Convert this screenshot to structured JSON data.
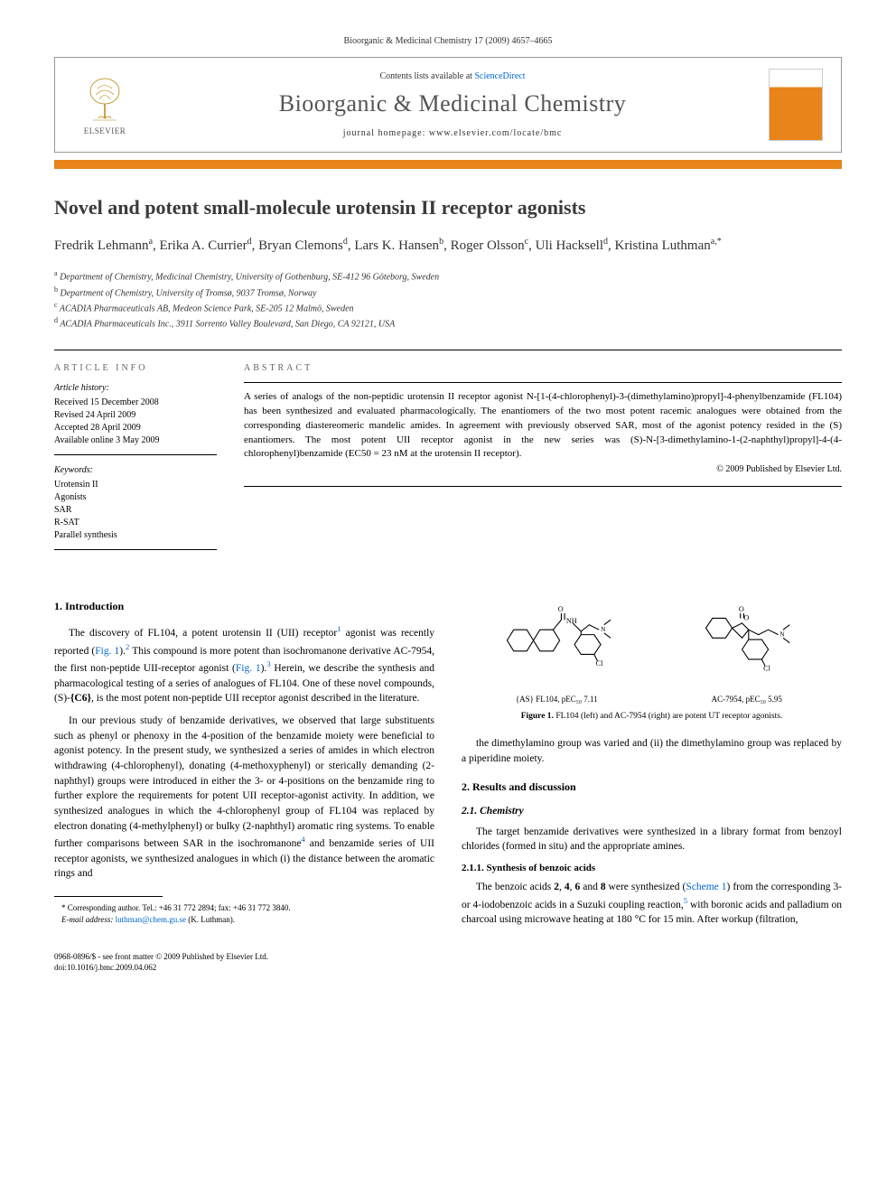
{
  "journal_ref": "Bioorganic & Medicinal Chemistry 17 (2009) 4657–4665",
  "header": {
    "contents_prefix": "Contents lists available at ",
    "contents_link": "ScienceDirect",
    "journal_title": "Bioorganic & Medicinal Chemistry",
    "homepage_prefix": "journal homepage: ",
    "homepage_url": "www.elsevier.com/locate/bmc",
    "publisher": "ELSEVIER"
  },
  "title": "Novel and potent small-molecule urotensin II receptor agonists",
  "authors_html": "Fredrik Lehmann<sup>a</sup>, Erika A. Currier<sup>d</sup>, Bryan Clemons<sup>d</sup>, Lars K. Hansen<sup>b</sup>, Roger Olsson<sup>c</sup>, Uli Hacksell<sup>d</sup>, Kristina Luthman<sup>a,*</sup>",
  "affiliations": [
    "Department of Chemistry, Medicinal Chemistry, University of Gothenburg, SE-412 96 Göteborg, Sweden",
    "Department of Chemistry, University of Tromsø, 9037 Tromsø, Norway",
    "ACADIA Pharmaceuticals AB, Medeon Science Park, SE-205 12 Malmö, Sweden",
    "ACADIA Pharmaceuticals Inc., 3911 Sorrento Valley Boulevard, San Diego, CA 92121, USA"
  ],
  "aff_sups": [
    "a",
    "b",
    "c",
    "d"
  ],
  "info": {
    "heading": "ARTICLE INFO",
    "abstract_heading": "ABSTRACT",
    "history_label": "Article history:",
    "received": "Received 15 December 2008",
    "revised": "Revised 24 April 2009",
    "accepted": "Accepted 28 April 2009",
    "online": "Available online 3 May 2009",
    "keywords_label": "Keywords:",
    "keywords": [
      "Urotensin II",
      "Agonists",
      "SAR",
      "R-SAT",
      "Parallel synthesis"
    ]
  },
  "abstract": "A series of analogs of the non-peptidic urotensin II receptor agonist N-[1-(4-chlorophenyl)-3-(dimethylamino)propyl]-4-phenylbenzamide (FL104) has been synthesized and evaluated pharmacologically. The enantiomers of the two most potent racemic analogues were obtained from the corresponding diastereomeric mandelic amides. In agreement with previously observed SAR, most of the agonist potency resided in the (S) enantiomers. The most potent UII receptor agonist in the new series was (S)-N-[3-dimethylamino-1-(2-naphthyl)propyl]-4-(4-chlorophenyl)benzamide (EC50 = 23 nM at the urotensin II receptor).",
  "copyright": "© 2009 Published by Elsevier Ltd.",
  "intro": {
    "heading": "1. Introduction",
    "p1": "The discovery of FL104, a potent urotensin II (UII) receptor¹ agonist was recently reported (Fig. 1).² This compound is more potent than isochromanone derivative AC-7954, the first non-peptide UII-receptor agonist (Fig. 1).³ Herein, we describe the synthesis and pharmacological testing of a series of analogues of FL104. One of these novel compounds, (S)-{C6}, is the most potent non-peptide UII receptor agonist described in the literature.",
    "p2": "In our previous study of benzamide derivatives, we observed that large substituents such as phenyl or phenoxy in the 4-position of the benzamide moiety were beneficial to agonist potency. In the present study, we synthesized a series of amides in which electron withdrawing (4-chlorophenyl), donating (4-methoxyphenyl) or sterically demanding (2-naphthyl) groups were introduced in either the 3- or 4-positions on the benzamide ring to further explore the requirements for potent UII receptor-agonist activity. In addition, we synthesized analogues in which the 4-chlorophenyl group of FL104 was replaced by electron donating (4-methylphenyl) or bulky (2-naphthyl) aromatic ring systems. To enable further comparisons between SAR in the isochromanone⁴ and benzamide series of UII receptor agonists, we synthesized analogues in which (i) the distance between the aromatic rings and",
    "p3_right": "the dimethylamino group was varied and (ii) the dimethylamino group was replaced by a piperidine moiety."
  },
  "figure1": {
    "left_label": "{AS} FL104, pEC₅₀ 7.11",
    "right_label": "AC-7954, pEC₅₀ 5.95",
    "caption": "Figure 1. FL104 (left) and AC-7954 (right) are potent UT receptor agonists."
  },
  "results": {
    "heading": "2. Results and discussion",
    "sub1": "2.1. Chemistry",
    "p1": "The target benzamide derivatives were synthesized in a library format from benzoyl chlorides (formed in situ) and the appropriate amines.",
    "sub11": "2.1.1. Synthesis of benzoic acids",
    "p2": "The benzoic acids 2, 4, 6 and 8 were synthesized (Scheme 1) from the corresponding 3- or 4-iodobenzoic acids in a Suzuki coupling reaction,⁵ with boronic acids and palladium on charcoal using microwave heating at 180 °C for 15 min. After workup (filtration,"
  },
  "corresponding": {
    "label": "* Corresponding author. Tel.: +46 31 772 2894; fax: +46 31 772 3840.",
    "email_label": "E-mail address:",
    "email": "luthman@chem.gu.se",
    "email_name": "(K. Luthman)."
  },
  "bottom": {
    "line1": "0968-0896/$ - see front matter © 2009 Published by Elsevier Ltd.",
    "line2": "doi:10.1016/j.bmc.2009.04.062"
  },
  "colors": {
    "orange": "#e8841a",
    "link": "#0066cc",
    "title_gray": "#555555"
  }
}
